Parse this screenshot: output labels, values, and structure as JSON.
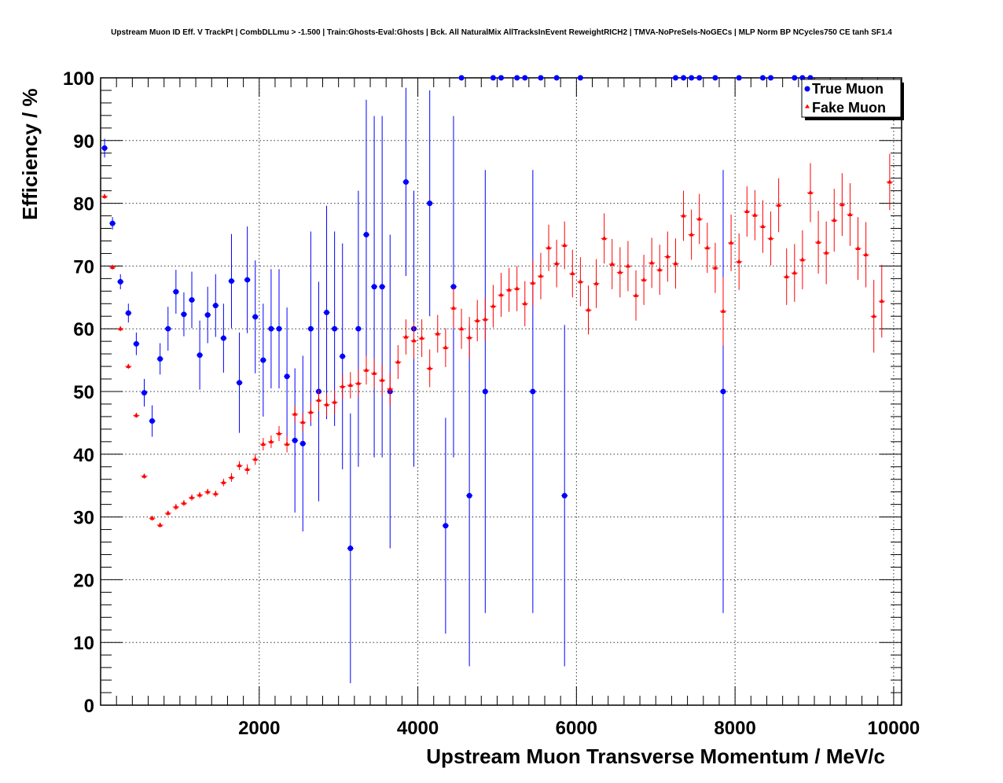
{
  "chart_data": {
    "type": "scatter",
    "title": "Upstream Muon ID Eff. V TrackPt | CombDLLmu > -1.500 | Train:Ghosts-Eval:Ghosts | Bck. All NaturalMix AllTracksInEvent ReweightRICH2 | TMVA-NoPreSels-NoGECs | MLP Norm BP NCycles750 CE tanh SF1.4",
    "xlabel": "Upstream Muon Transverse Momentum / MeV/c",
    "ylabel": "Efficiency / %",
    "xlim": [
      0,
      10100
    ],
    "ylim": [
      0,
      100
    ],
    "x_ticks": [
      2000,
      4000,
      6000,
      8000,
      10000
    ],
    "y_ticks": [
      0,
      10,
      20,
      30,
      40,
      50,
      60,
      70,
      80,
      90,
      100
    ],
    "grid": true,
    "legend_position": "top-right",
    "series": [
      {
        "name": "True Muon",
        "color": "#0000ff",
        "marker": "circle",
        "points": [
          [
            50,
            88.8,
            1.5
          ],
          [
            150,
            76.8,
            1
          ],
          [
            250,
            67.5,
            1.2
          ],
          [
            350,
            62.5,
            1.5
          ],
          [
            450,
            57.6,
            1.8
          ],
          [
            550,
            49.8,
            2.2
          ],
          [
            650,
            45.3,
            2.5
          ],
          [
            750,
            55.2,
            2.5
          ],
          [
            850,
            60.0,
            3.5
          ],
          [
            950,
            65.9,
            3.5
          ],
          [
            1050,
            62.3,
            3.5
          ],
          [
            1150,
            64.6,
            4.5
          ],
          [
            1250,
            55.8,
            5.5
          ],
          [
            1350,
            62.2,
            4.5
          ],
          [
            1450,
            63.7,
            5
          ],
          [
            1550,
            58.5,
            5.5
          ],
          [
            1650,
            67.6,
            7.5
          ],
          [
            1750,
            51.4,
            8
          ],
          [
            1850,
            67.8,
            8.5
          ],
          [
            1950,
            61.9,
            9
          ],
          [
            2050,
            55.0,
            9
          ],
          [
            2150,
            60.0,
            9.5
          ],
          [
            2250,
            60.0,
            9.5
          ],
          [
            2350,
            52.4,
            11
          ],
          [
            2450,
            42.2,
            11.5
          ],
          [
            2550,
            41.7,
            14
          ],
          [
            2650,
            60.0,
            15.5
          ],
          [
            2750,
            50.0,
            17.5
          ],
          [
            2850,
            62.6,
            17
          ],
          [
            2950,
            60.0,
            15.5
          ],
          [
            3050,
            55.6,
            18
          ],
          [
            3150,
            25.0,
            21.5
          ],
          [
            3250,
            60.0,
            22
          ],
          [
            3350,
            75.0,
            21.5
          ],
          [
            3450,
            66.7,
            27.2
          ],
          [
            3550,
            66.7,
            27.2
          ],
          [
            3650,
            50.0,
            25
          ],
          [
            3850,
            83.4,
            15
          ],
          [
            3950,
            60.0,
            22
          ],
          [
            4150,
            80.0,
            18
          ],
          [
            4350,
            28.6,
            17.2
          ],
          [
            4450,
            66.7,
            27.2
          ],
          [
            4550,
            100.0,
            0
          ],
          [
            4650,
            33.4,
            27.2
          ],
          [
            4850,
            50.0,
            35.3
          ],
          [
            4950,
            100.0,
            0
          ],
          [
            5050,
            100.0,
            0
          ],
          [
            5250,
            100.0,
            0
          ],
          [
            5350,
            100.0,
            0
          ],
          [
            5450,
            50.0,
            35.3
          ],
          [
            5550,
            100.0,
            0
          ],
          [
            5750,
            100.0,
            0
          ],
          [
            5850,
            33.4,
            27.2
          ],
          [
            6050,
            100.0,
            0
          ],
          [
            7250,
            100.0,
            0
          ],
          [
            7350,
            100.0,
            0
          ],
          [
            7450,
            100.0,
            0
          ],
          [
            7550,
            100.0,
            0
          ],
          [
            7750,
            100.0,
            0
          ],
          [
            7850,
            50.0,
            35.3
          ],
          [
            8050,
            100.0,
            0
          ],
          [
            8350,
            100.0,
            0
          ],
          [
            8450,
            100.0,
            0
          ],
          [
            8750,
            100.0,
            0
          ],
          [
            8850,
            100.0,
            0
          ],
          [
            8950,
            100.0,
            0
          ]
        ]
      },
      {
        "name": "Fake Muon",
        "color": "#ff0000",
        "marker": "triangle",
        "points": [
          [
            50,
            81.1,
            0.4
          ],
          [
            150,
            69.8,
            0.4
          ],
          [
            250,
            60.0,
            0.4
          ],
          [
            350,
            54.0,
            0.4
          ],
          [
            450,
            46.2,
            0.4
          ],
          [
            550,
            36.5,
            0.4
          ],
          [
            650,
            29.8,
            0.4
          ],
          [
            750,
            28.7,
            0.4
          ],
          [
            850,
            30.6,
            0.4
          ],
          [
            950,
            31.6,
            0.5
          ],
          [
            1050,
            32.2,
            0.5
          ],
          [
            1150,
            33.1,
            0.5
          ],
          [
            1250,
            33.5,
            0.5
          ],
          [
            1350,
            34.0,
            0.5
          ],
          [
            1450,
            33.7,
            0.5
          ],
          [
            1550,
            35.5,
            0.6
          ],
          [
            1650,
            36.3,
            0.7
          ],
          [
            1750,
            38.2,
            0.7
          ],
          [
            1850,
            37.6,
            0.8
          ],
          [
            1950,
            39.2,
            0.9
          ],
          [
            2050,
            41.6,
            1
          ],
          [
            2150,
            42.0,
            1
          ],
          [
            2250,
            43.3,
            1.2
          ],
          [
            2350,
            41.6,
            1.3
          ],
          [
            2450,
            46.4,
            1.4
          ],
          [
            2550,
            45.1,
            1.5
          ],
          [
            2650,
            46.7,
            1.6
          ],
          [
            2750,
            48.6,
            1.7
          ],
          [
            2850,
            47.9,
            1.8
          ],
          [
            2950,
            48.3,
            1.9
          ],
          [
            3050,
            50.8,
            2
          ],
          [
            3150,
            51.0,
            2.1
          ],
          [
            3250,
            51.3,
            2.2
          ],
          [
            3350,
            53.4,
            2.3
          ],
          [
            3450,
            52.9,
            2.4
          ],
          [
            3550,
            51.8,
            2.5
          ],
          [
            3650,
            50.4,
            2.6
          ],
          [
            3750,
            54.7,
            2.7
          ],
          [
            3850,
            58.7,
            2.8
          ],
          [
            3950,
            58.1,
            2.9
          ],
          [
            4050,
            58.5,
            3
          ],
          [
            4150,
            53.7,
            3
          ],
          [
            4250,
            59.2,
            3
          ],
          [
            4350,
            57.0,
            3.1
          ],
          [
            4450,
            63.3,
            3.2
          ],
          [
            4550,
            60.0,
            3.2
          ],
          [
            4650,
            58.6,
            3.3
          ],
          [
            4750,
            61.3,
            3.3
          ],
          [
            4850,
            61.5,
            3.4
          ],
          [
            4950,
            63.6,
            3.4
          ],
          [
            5050,
            65.4,
            3.5
          ],
          [
            5150,
            66.2,
            3.5
          ],
          [
            5250,
            66.4,
            3.6
          ],
          [
            5350,
            64.0,
            3.6
          ],
          [
            5450,
            67.3,
            3.7
          ],
          [
            5550,
            68.4,
            3.7
          ],
          [
            5650,
            72.9,
            3.7
          ],
          [
            5750,
            70.4,
            3.8
          ],
          [
            5850,
            73.3,
            3.8
          ],
          [
            5950,
            68.8,
            3.8
          ],
          [
            6050,
            67.5,
            3.9
          ],
          [
            6150,
            63.0,
            3.9
          ],
          [
            6250,
            67.2,
            3.9
          ],
          [
            6350,
            74.4,
            4
          ],
          [
            6450,
            70.3,
            4
          ],
          [
            6550,
            69.0,
            4
          ],
          [
            6650,
            70.0,
            4
          ],
          [
            6750,
            65.3,
            4
          ],
          [
            6850,
            67.8,
            4
          ],
          [
            6950,
            70.5,
            4
          ],
          [
            7050,
            69.4,
            4
          ],
          [
            7150,
            71.5,
            4
          ],
          [
            7250,
            70.4,
            4
          ],
          [
            7350,
            78.0,
            4
          ],
          [
            7450,
            75.0,
            4
          ],
          [
            7550,
            77.5,
            4
          ],
          [
            7650,
            72.9,
            4
          ],
          [
            7750,
            69.7,
            4
          ],
          [
            7850,
            62.8,
            5.5
          ],
          [
            7950,
            73.7,
            4.5
          ],
          [
            8050,
            70.7,
            4.5
          ],
          [
            8150,
            78.7,
            4
          ],
          [
            8250,
            78.1,
            4
          ],
          [
            8350,
            76.3,
            4.2
          ],
          [
            8450,
            74.4,
            4.3
          ],
          [
            8550,
            79.7,
            4.3
          ],
          [
            8650,
            68.3,
            4.5
          ],
          [
            8750,
            68.9,
            4.6
          ],
          [
            8850,
            71.0,
            4.7
          ],
          [
            8950,
            81.7,
            4.7
          ],
          [
            9050,
            73.8,
            5
          ],
          [
            9150,
            72.1,
            5
          ],
          [
            9250,
            77.3,
            5
          ],
          [
            9350,
            79.8,
            5
          ],
          [
            9450,
            78.2,
            5
          ],
          [
            9550,
            72.8,
            5
          ],
          [
            9650,
            71.8,
            5.2
          ],
          [
            9750,
            62.0,
            5.8
          ],
          [
            9850,
            64.4,
            5.8
          ],
          [
            9950,
            83.4,
            4.5
          ]
        ]
      }
    ]
  }
}
